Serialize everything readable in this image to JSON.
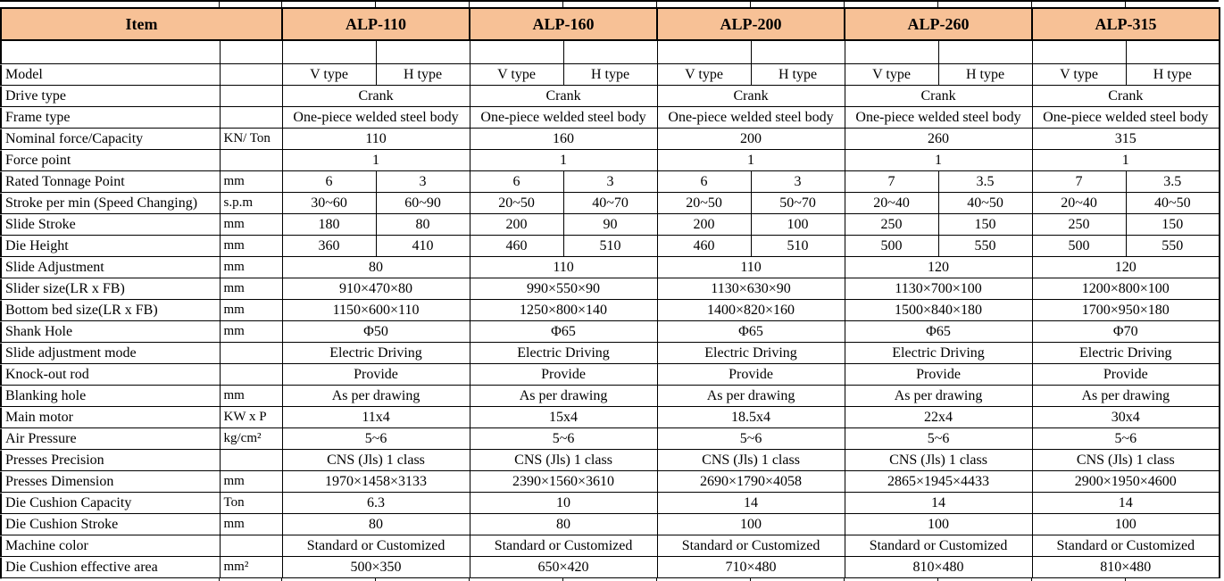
{
  "colors": {
    "header_bg": "#F7C196",
    "border": "#000000"
  },
  "header": {
    "item_label": "Item",
    "models": [
      "ALP-110",
      "ALP-160",
      "ALP-200",
      "ALP-260",
      "ALP-315"
    ]
  },
  "rows": [
    {
      "item": "Model",
      "unit": "",
      "values": [
        [
          "V type",
          "H type"
        ],
        [
          "V type",
          "H type"
        ],
        [
          "V type",
          "H type"
        ],
        [
          "V type",
          "H type"
        ],
        [
          "V type",
          "H type"
        ]
      ]
    },
    {
      "item": "Drive type",
      "unit": "",
      "values": [
        "Crank",
        "Crank",
        "Crank",
        "Crank",
        "Crank"
      ]
    },
    {
      "item": "Frame type",
      "unit": "",
      "values": [
        "One-piece welded steel body",
        "One-piece welded steel body",
        "One-piece welded steel body",
        "One-piece welded steel body",
        "One-piece welded steel body"
      ]
    },
    {
      "item": "Nominal force/Capacity",
      "unit": "KN/ Ton",
      "values": [
        "110",
        "160",
        "200",
        "260",
        "315"
      ]
    },
    {
      "item": "Force point",
      "unit": "",
      "values": [
        "1",
        "1",
        "1",
        "1",
        "1"
      ]
    },
    {
      "item": "Rated Tonnage Point",
      "unit": "mm",
      "values": [
        [
          "6",
          "3"
        ],
        [
          "6",
          "3"
        ],
        [
          "6",
          "3"
        ],
        [
          "7",
          "3.5"
        ],
        [
          "7",
          "3.5"
        ]
      ]
    },
    {
      "item": "Stroke per min (Speed Changing)",
      "unit": "s.p.m",
      "values": [
        [
          "30~60",
          "60~90"
        ],
        [
          "20~50",
          "40~70"
        ],
        [
          "20~50",
          "50~70"
        ],
        [
          "20~40",
          "40~50"
        ],
        [
          "20~40",
          "40~50"
        ]
      ]
    },
    {
      "item": "Slide Stroke",
      "unit": "mm",
      "values": [
        [
          "180",
          "80"
        ],
        [
          "200",
          "90"
        ],
        [
          "200",
          "100"
        ],
        [
          "250",
          "150"
        ],
        [
          "250",
          "150"
        ]
      ]
    },
    {
      "item": "Die Height",
      "unit": "mm",
      "values": [
        [
          "360",
          "410"
        ],
        [
          "460",
          "510"
        ],
        [
          "460",
          "510"
        ],
        [
          "500",
          "550"
        ],
        [
          "500",
          "550"
        ]
      ]
    },
    {
      "item": "Slide Adjustment",
      "unit": "mm",
      "values": [
        "80",
        "110",
        "110",
        "120",
        "120"
      ]
    },
    {
      "item": "Slider size(LR x FB)",
      "unit": "mm",
      "values": [
        "910×470×80",
        "990×550×90",
        "1130×630×90",
        "1130×700×100",
        "1200×800×100"
      ]
    },
    {
      "item": "Bottom bed size(LR x FB)",
      "unit": "mm",
      "values": [
        "1150×600×110",
        "1250×800×140",
        "1400×820×160",
        "1500×840×180",
        "1700×950×180"
      ]
    },
    {
      "item": "Shank Hole",
      "unit": "mm",
      "values": [
        "Φ50",
        "Φ65",
        "Φ65",
        "Φ65",
        "Φ70"
      ]
    },
    {
      "item": "Slide adjustment mode",
      "unit": "",
      "values": [
        "Electric Driving",
        "Electric Driving",
        "Electric Driving",
        "Electric Driving",
        "Electric Driving"
      ]
    },
    {
      "item": "Knock-out rod",
      "unit": "",
      "values": [
        "Provide",
        "Provide",
        "Provide",
        "Provide",
        "Provide"
      ]
    },
    {
      "item": "Blanking hole",
      "unit": "mm",
      "values": [
        "As per drawing",
        "As per drawing",
        "As per drawing",
        "As per drawing",
        "As per drawing"
      ]
    },
    {
      "item": "Main motor",
      "unit": "KW x P",
      "values": [
        "11x4",
        "15x4",
        "18.5x4",
        "22x4",
        "30x4"
      ]
    },
    {
      "item": "Air Pressure",
      "unit": "kg/cm²",
      "values": [
        "5~6",
        "5~6",
        "5~6",
        "5~6",
        "5~6"
      ]
    },
    {
      "item": "Presses Precision",
      "unit": "",
      "values": [
        "CNS (Jls) 1 class",
        "CNS (Jls) 1 class",
        "CNS (Jls) 1 class",
        "CNS (Jls) 1 class",
        "CNS (Jls) 1 class"
      ]
    },
    {
      "item": "Presses Dimension",
      "unit": "mm",
      "values": [
        "1970×1458×3133",
        "2390×1560×3610",
        "2690×1790×4058",
        "2865×1945×4433",
        "2900×1950×4600"
      ]
    },
    {
      "item": "Die Cushion Capacity",
      "unit": "Ton",
      "values": [
        "6.3",
        "10",
        "14",
        "14",
        "14"
      ]
    },
    {
      "item": "Die Cushion Stroke",
      "unit": "mm",
      "values": [
        "80",
        "80",
        "100",
        "100",
        "100"
      ]
    },
    {
      "item": "Machine color",
      "unit": "",
      "values": [
        "Standard or Customized",
        "Standard or Customized",
        "Standard or Customized",
        "Standard or Customized",
        "Standard or Customized"
      ]
    },
    {
      "item": "Die Cushion effective area",
      "unit": "mm²",
      "values": [
        "500×350",
        "650×420",
        "710×480",
        "810×480",
        "810×480"
      ]
    }
  ]
}
